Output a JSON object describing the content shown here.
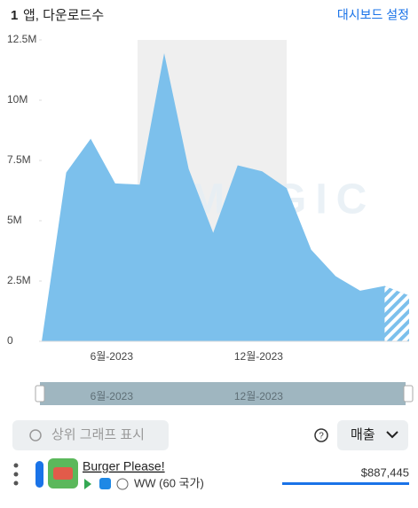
{
  "header": {
    "count": "1",
    "title": "앱, 다운로드수",
    "settings_link": "대시보드 설정"
  },
  "chart_data": {
    "type": "area",
    "watermark": "APPMAGIC",
    "categories": [
      null,
      null,
      null,
      "6월-2023",
      null,
      null,
      null,
      null,
      null,
      "12월-2023",
      null,
      null,
      null,
      null,
      null,
      null
    ],
    "values": [
      0,
      7000000,
      8400000,
      6550000,
      6500000,
      11950000,
      7150000,
      4500000,
      7300000,
      7050000,
      6350000,
      3800000,
      2700000,
      2100000,
      2300000,
      1900000
    ],
    "color": "#7cc0ec",
    "partial_last": true,
    "ylim": [
      0,
      12500000
    ],
    "yticks": [
      0,
      {
        "value": 2500000,
        "label": "2.5M"
      },
      {
        "value": 5000000,
        "label": "5M"
      },
      {
        "value": 7500000,
        "label": "7.5M"
      },
      {
        "value": 10000000,
        "label": "10M"
      },
      {
        "value": 12500000,
        "label": "12.5M"
      }
    ]
  },
  "controls": {
    "show_top_chart": "상위 그래프 표시",
    "help": "?",
    "metric_select": "매출"
  },
  "app": {
    "name": "Burger Please!",
    "region": "WW (60 국가)",
    "revenue": "$887,445"
  }
}
